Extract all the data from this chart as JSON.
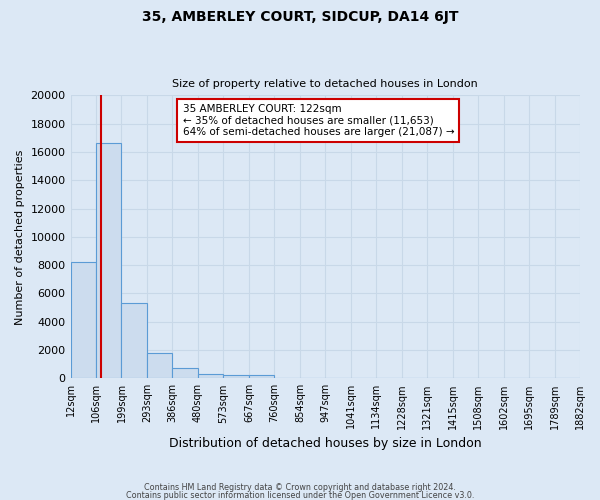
{
  "title": "35, AMBERLEY COURT, SIDCUP, DA14 6JT",
  "subtitle": "Size of property relative to detached houses in London",
  "xlabel": "Distribution of detached houses by size in London",
  "ylabel": "Number of detached properties",
  "bar_heights": [
    8200,
    16600,
    5300,
    1800,
    750,
    300,
    250,
    250,
    0,
    0,
    0,
    0,
    0,
    0,
    0,
    0,
    0,
    0,
    0,
    0
  ],
  "bin_edges": [
    12,
    106,
    199,
    293,
    386,
    480,
    573,
    667,
    760,
    854,
    947,
    1041,
    1134,
    1228,
    1321,
    1415,
    1508,
    1602,
    1695,
    1789,
    1882
  ],
  "bar_color": "#ccdcee",
  "bar_edge_color": "#5b9bd5",
  "property_line_x": 122,
  "property_line_color": "#cc0000",
  "annotation_title": "35 AMBERLEY COURT: 122sqm",
  "annotation_line1": "← 35% of detached houses are smaller (11,653)",
  "annotation_line2": "64% of semi-detached houses are larger (21,087) →",
  "annotation_box_color": "#ffffff",
  "annotation_box_edge": "#cc0000",
  "ylim": [
    0,
    20000
  ],
  "yticks": [
    0,
    2000,
    4000,
    6000,
    8000,
    10000,
    12000,
    14000,
    16000,
    18000,
    20000
  ],
  "background_color": "#dce8f5",
  "plot_background": "#dce8f5",
  "grid_color": "#c8d8e8",
  "footer_line1": "Contains HM Land Registry data © Crown copyright and database right 2024.",
  "footer_line2": "Contains public sector information licensed under the Open Government Licence v3.0."
}
